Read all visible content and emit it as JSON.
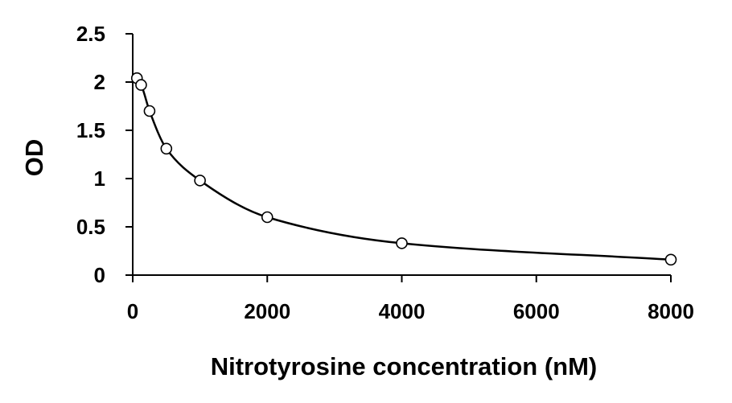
{
  "chart_data": {
    "type": "scatter",
    "title": "",
    "xlabel": "Nitrotyrosine concentration (nM)",
    "ylabel": "OD",
    "xlim": [
      0,
      8000
    ],
    "ylim": [
      0,
      2.5
    ],
    "x_ticks": [
      0,
      2000,
      4000,
      6000,
      8000
    ],
    "x_tick_labels": [
      "0",
      "2000",
      "4000",
      "6000",
      "8000"
    ],
    "y_ticks": [
      0,
      0.5,
      1,
      1.5,
      2,
      2.5
    ],
    "y_tick_labels": [
      "0",
      "0.5",
      "1",
      "1.5",
      "2",
      "2.5"
    ],
    "grid": false,
    "legend": "none",
    "series": [
      {
        "points": [
          {
            "x": 62.5,
            "y": 2.04
          },
          {
            "x": 125,
            "y": 1.97
          },
          {
            "x": 250,
            "y": 1.7
          },
          {
            "x": 500,
            "y": 1.31
          },
          {
            "x": 1000,
            "y": 0.98
          },
          {
            "x": 2000,
            "y": 0.6
          },
          {
            "x": 4000,
            "y": 0.33
          },
          {
            "x": 8000,
            "y": 0.16
          }
        ],
        "trendline": "smooth curve",
        "marker": "open circle",
        "color": "#000000"
      }
    ]
  }
}
